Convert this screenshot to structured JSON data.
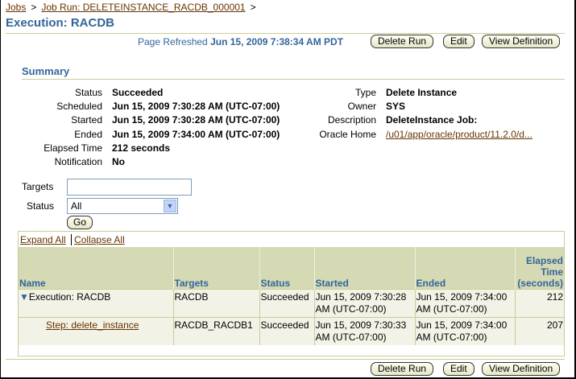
{
  "breadcrumb": {
    "items": [
      "Jobs",
      "Job Run: DELETEINSTANCE_RACDB_000001"
    ],
    "sep": ">"
  },
  "page_title": "Execution: RACDB",
  "refresh": {
    "label": "Page Refreshed",
    "value": "Jun 15, 2009 7:38:34 AM PDT"
  },
  "buttons": {
    "delete_run": "Delete Run",
    "edit": "Edit",
    "view_definition": "View Definition"
  },
  "summary": {
    "heading": "Summary",
    "left": [
      {
        "label": "Status",
        "value": "Succeeded"
      },
      {
        "label": "Scheduled",
        "value": "Jun 15, 2009 7:30:28 AM (UTC-07:00)"
      },
      {
        "label": "Started",
        "value": "Jun 15, 2009 7:30:28 AM (UTC-07:00)"
      },
      {
        "label": "Ended",
        "value": "Jun 15, 2009 7:34:00 AM (UTC-07:00)"
      },
      {
        "label": "Elapsed Time",
        "value": "212 seconds"
      },
      {
        "label": "Notification",
        "value": "No"
      }
    ],
    "right": [
      {
        "label": "Type",
        "value": "Delete Instance"
      },
      {
        "label": "Owner",
        "value": "SYS"
      },
      {
        "label": "Description",
        "value": "DeleteInstance Job:"
      },
      {
        "label": "Oracle Home",
        "value": "/u01/app/oracle/product/11.2.0/d..."
      }
    ]
  },
  "filters": {
    "targets_label": "Targets",
    "targets_value": "",
    "status_label": "Status",
    "status_value": "All",
    "go": "Go"
  },
  "table": {
    "expand_all": "Expand All",
    "collapse_all": "Collapse All",
    "headers": [
      "Name",
      "Targets",
      "Status",
      "Started",
      "Ended",
      "Elapsed Time (seconds)"
    ],
    "rows": [
      {
        "name": "Execution: RACDB",
        "targets": "RACDB",
        "status": "Succeeded",
        "started": "Jun 15, 2009 7:30:28 AM (UTC-07:00)",
        "ended": "Jun 15, 2009 7:34:00 AM (UTC-07:00)",
        "elapsed": "212"
      },
      {
        "name": "Step: delete_instance",
        "targets": "RACDB_RACDB1",
        "status": "Succeeded",
        "started": "Jun 15, 2009 7:30:33 AM (UTC-07:00)",
        "ended": "Jun 15, 2009 7:34:00 AM (UTC-07:00)",
        "elapsed": "207"
      }
    ]
  }
}
